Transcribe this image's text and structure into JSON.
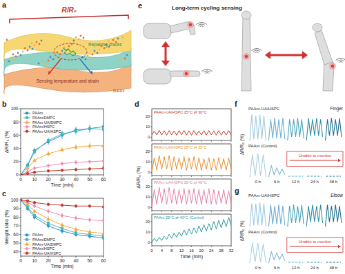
{
  "illustrations": {
    "a": {
      "panel": "a",
      "ratio_label": "R/R₀",
      "crack_label": "Repairing cracks",
      "sensing_label": "Sensing temperature and strain",
      "skin_label": "Skin"
    },
    "e": {
      "panel": "e",
      "title": "Long-term cycling sensing"
    }
  },
  "chart_data": [
    {
      "panel": "b",
      "type": "line",
      "xlabel": "Time (min)",
      "ylabel": "ΔR/R₀ (%)",
      "x": [
        0,
        5,
        10,
        20,
        30,
        40,
        50,
        60
      ],
      "xlim": [
        0,
        60
      ],
      "xticks": [
        0,
        10,
        20,
        30,
        40,
        50,
        60
      ],
      "ylim": [
        0,
        100
      ],
      "yticks": [
        0,
        20,
        40,
        60,
        80,
        100
      ],
      "legend": "upper left",
      "series": [
        {
          "name": "PAAm",
          "color": "#2b8cbe",
          "marker": "circle",
          "values": [
            0,
            15,
            37,
            50,
            60,
            68,
            70,
            73
          ],
          "errors": [
            0,
            3,
            4,
            5,
            6,
            5,
            6,
            5
          ]
        },
        {
          "name": "PAAm/DMPC",
          "color": "#41b6c4",
          "marker": "square",
          "values": [
            0,
            14,
            35,
            52,
            62,
            66,
            70,
            69
          ],
          "errors": [
            0,
            3,
            4,
            5,
            5,
            6,
            5,
            6
          ]
        },
        {
          "name": "PAAm-UA/DMPC",
          "color": "#f4a63a",
          "marker": "triangle",
          "values": [
            0,
            10,
            22,
            32,
            38,
            42,
            44,
            44
          ],
          "errors": [
            0,
            2,
            3,
            4,
            4,
            4,
            5,
            4
          ]
        },
        {
          "name": "PAAm/HSPC",
          "color": "#f08fb1",
          "marker": "diamond",
          "values": [
            0,
            5,
            10,
            14,
            17,
            19,
            20,
            21
          ],
          "errors": [
            0,
            2,
            2,
            3,
            3,
            3,
            3,
            3
          ]
        },
        {
          "name": "PAAm-UA/HSPC",
          "color": "#c0392b",
          "marker": "circle",
          "values": [
            0,
            2,
            4,
            6,
            7,
            8,
            9,
            10
          ],
          "errors": [
            0,
            1,
            2,
            2,
            2,
            3,
            3,
            3
          ]
        }
      ]
    },
    {
      "panel": "c",
      "type": "line",
      "xlabel": "Time (min)",
      "ylabel": "Weight ratio (%)",
      "x": [
        0,
        5,
        10,
        20,
        30,
        40,
        50,
        60
      ],
      "xlim": [
        0,
        60
      ],
      "xticks": [
        0,
        10,
        20,
        30,
        40,
        50,
        60
      ],
      "ylim": [
        35,
        102
      ],
      "yticks": [
        40,
        50,
        60,
        70,
        80,
        90,
        100
      ],
      "legend": "lower left",
      "series": [
        {
          "name": "PAAm",
          "color": "#2b8cbe",
          "marker": "circle",
          "values": [
            100,
            90,
            80,
            70,
            64,
            60,
            58,
            56
          ],
          "errors": [
            0,
            2,
            3,
            3,
            3,
            3,
            3,
            3
          ]
        },
        {
          "name": "PAAm/DMPC",
          "color": "#41b6c4",
          "marker": "square",
          "values": [
            100,
            92,
            82,
            73,
            67,
            62,
            60,
            58
          ],
          "errors": [
            0,
            2,
            3,
            3,
            3,
            3,
            3,
            3
          ]
        },
        {
          "name": "PAAm-UA/DMPC",
          "color": "#f4a63a",
          "marker": "triangle",
          "values": [
            100,
            95,
            87,
            78,
            71,
            66,
            63,
            61
          ],
          "errors": [
            0,
            2,
            2,
            3,
            3,
            3,
            3,
            3
          ]
        },
        {
          "name": "PAAm/HSPC",
          "color": "#f08fb1",
          "marker": "diamond",
          "values": [
            100,
            97,
            93,
            87,
            82,
            79,
            77,
            76
          ],
          "errors": [
            0,
            2,
            2,
            3,
            3,
            3,
            3,
            3
          ]
        },
        {
          "name": "PAAm-UA/HSPC",
          "color": "#c0392b",
          "marker": "circle",
          "values": [
            100,
            99,
            97,
            95,
            94,
            93,
            93,
            92
          ],
          "errors": [
            0,
            1,
            2,
            2,
            2,
            2,
            2,
            2
          ]
        }
      ]
    },
    {
      "panel": "d",
      "type": "line",
      "xlabel": "Time (min)",
      "ylabel": "ΔR/R₀ (%)",
      "x": [
        0,
        1,
        2,
        3,
        4,
        5,
        6,
        7,
        8,
        9,
        10,
        11,
        12,
        13,
        14,
        15,
        16,
        17,
        18,
        19,
        20,
        21,
        22,
        23,
        24,
        25,
        26,
        27,
        28,
        29,
        30,
        31,
        32
      ],
      "xlim": [
        0,
        32
      ],
      "xticks": [
        0,
        4,
        8,
        12,
        16,
        20,
        24,
        28,
        32
      ],
      "ylim": [
        -3,
        27
      ],
      "yticks": [
        0,
        10,
        20
      ],
      "series": [
        {
          "name": "PAAm-UA/HSPC 25°C ⇄ 30°C",
          "color": "#c0392b",
          "values": [
            2,
            6,
            2.3,
            6.5,
            2.1,
            6.2,
            2,
            6.4,
            2.2,
            6.1,
            2,
            6.3,
            2.3,
            6.5,
            2.1,
            6.2,
            2,
            6.4,
            2.2,
            6.1,
            2.1,
            6.3,
            2,
            6.4,
            2.2,
            6.2,
            2,
            6.3,
            2.1,
            6.1,
            2.2,
            6.4,
            2.1
          ]
        },
        {
          "name": "PAAm-UA/HSPC 25°C ⇄ 35°C",
          "color": "#e8902a",
          "values": [
            0,
            14,
            2,
            16,
            3,
            15,
            3,
            16,
            2,
            15,
            3,
            14,
            3,
            15,
            2,
            14,
            3,
            15,
            2,
            14,
            2,
            13,
            3,
            14,
            2,
            13,
            2,
            14,
            3,
            13,
            2,
            14,
            2
          ]
        },
        {
          "name": "PAAm-UA/HSPC 25°C ⇄ 40°C",
          "color": "#e37fa6",
          "values": [
            0,
            17,
            3,
            19,
            4,
            18,
            3,
            19,
            4,
            18,
            3,
            17,
            4,
            18,
            3,
            17,
            4,
            18,
            3,
            17,
            3,
            17,
            4,
            18,
            3,
            17,
            3,
            16,
            4,
            17,
            3,
            16,
            3
          ]
        },
        {
          "name": "PAAm 25°C ⇄ 40°C (Control)",
          "color": "#2a9d9f",
          "values": [
            0,
            4,
            1,
            5,
            2,
            6,
            3,
            8,
            4,
            9,
            5,
            10,
            6,
            12,
            7,
            13,
            8,
            14,
            9,
            16,
            10,
            17,
            11,
            18,
            12,
            20,
            13,
            21,
            14,
            22,
            15,
            24,
            16
          ]
        }
      ]
    },
    {
      "panel": "f",
      "type": "line",
      "title": "Finger",
      "ylabel": "ΔR/R₀ (%)",
      "categories": [
        "0 h",
        "6 h",
        "12 h",
        "24 h",
        "48 h"
      ],
      "ylim": [
        0,
        12
      ],
      "tick_labels": "x",
      "annotation": "Unable to monitor",
      "series": [
        {
          "name": "PAAm-UA/HSPC",
          "colors": [
            "#9ecae1",
            "#6baed6",
            "#4aa3b5",
            "#2c8fa6",
            "#1f6f8b"
          ],
          "values": [
            [
              0,
              11,
              0.5,
              10.5,
              0.5,
              11,
              0.5,
              10.5,
              0
            ],
            [
              0,
              9,
              1,
              9.5,
              1,
              9,
              1,
              9.5,
              0.5
            ],
            [
              0,
              9,
              1.5,
              9,
              1.5,
              9.5,
              1.5,
              9,
              1
            ],
            [
              0,
              9.5,
              2,
              9,
              2,
              9.5,
              2,
              9,
              1.5
            ],
            [
              0,
              9,
              2,
              9.5,
              2,
              9,
              2,
              9.5,
              1.5
            ]
          ]
        },
        {
          "name": "PAAm (Control)",
          "colors": [
            "#a8d0e0",
            "#7fb8d4",
            "#4aa3b5",
            "#2c8fa6",
            "#1f6f8b"
          ],
          "values": [
            [
              0,
              10,
              0.5,
              10.5,
              0.5,
              10,
              0
            ],
            [
              0,
              5,
              1,
              4,
              1,
              3.5,
              1
            ],
            null,
            null,
            null
          ]
        }
      ]
    },
    {
      "panel": "g",
      "type": "line",
      "title": "Elbow",
      "ylabel": "ΔR/R₀ (%)",
      "categories": [
        "0 h",
        "6 h",
        "12 h",
        "24 h",
        "48 h"
      ],
      "ylim": [
        0,
        12
      ],
      "tick_labels": "x",
      "annotation": "Unable to monitor",
      "series": [
        {
          "name": "PAAm-UA/HSPC",
          "colors": [
            "#9ecae1",
            "#6baed6",
            "#4aa3b5",
            "#2c8fa6",
            "#1f6f8b"
          ],
          "values": [
            [
              0,
              10,
              0.5,
              10,
              0.5,
              10.5,
              0.5,
              10,
              0
            ],
            [
              0,
              9.5,
              1,
              9,
              1,
              9.5,
              1,
              9,
              0.5
            ],
            [
              0,
              9,
              1.5,
              9.5,
              1.5,
              9,
              1.5,
              9.5,
              1
            ],
            [
              0,
              9,
              2,
              9.5,
              2,
              9,
              2,
              9.5,
              1.5
            ],
            [
              0,
              9.5,
              2,
              9,
              2,
              9.5,
              2,
              9,
              1.5
            ]
          ]
        },
        {
          "name": "PAAm (Control)",
          "colors": [
            "#a8d0e0",
            "#7fb8d4",
            "#4aa3b5",
            "#2c8fa6",
            "#1f6f8b"
          ],
          "values": [
            [
              0,
              9,
              0.5,
              9,
              0.5,
              8.5,
              0
            ],
            [
              0,
              5,
              1.5,
              4.5,
              1.5,
              4,
              1
            ],
            null,
            null,
            null
          ]
        }
      ]
    }
  ]
}
